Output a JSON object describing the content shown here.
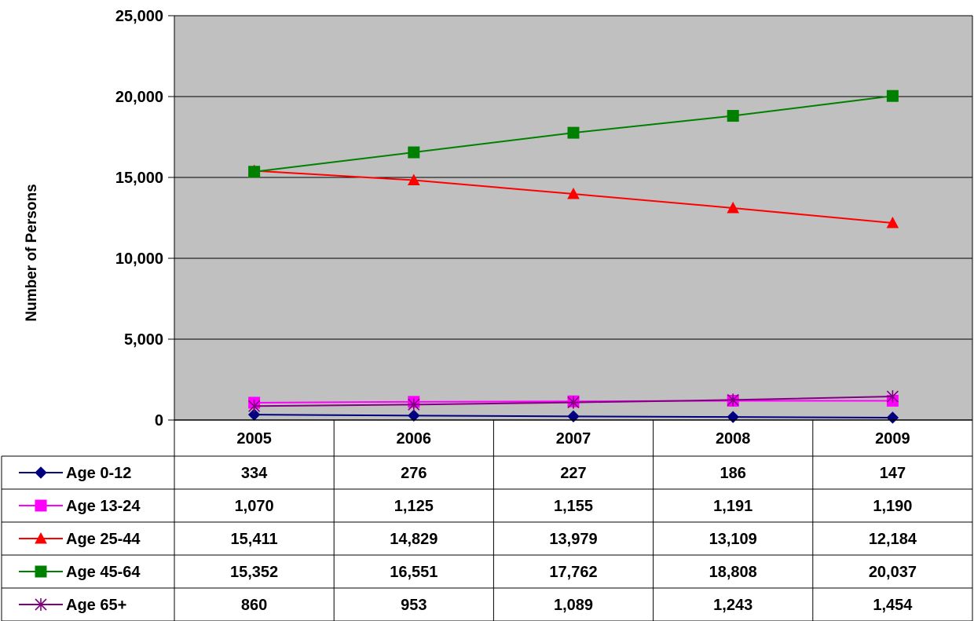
{
  "chart_data": {
    "type": "line",
    "title": "",
    "xlabel": "",
    "ylabel": "Number of Persons",
    "categories": [
      "2005",
      "2006",
      "2007",
      "2008",
      "2009"
    ],
    "ylim": [
      0,
      25000
    ],
    "yticks": [
      0,
      5000,
      10000,
      15000,
      20000,
      25000
    ],
    "ytick_labels": [
      "0",
      "5,000",
      "10,000",
      "15,000",
      "20,000",
      "25,000"
    ],
    "grid": true,
    "plot_background": "#C0C0C0",
    "legend": "data-table",
    "series": [
      {
        "name": "Age  0-12",
        "color": "#000080",
        "marker": "diamond",
        "values": [
          334,
          276,
          227,
          186,
          147
        ],
        "labels": [
          "334",
          "276",
          "227",
          "186",
          "147"
        ]
      },
      {
        "name": "Age 13-24",
        "color": "#FF00FF",
        "marker": "square",
        "values": [
          1070,
          1125,
          1155,
          1191,
          1190
        ],
        "labels": [
          "1,070",
          "1,125",
          "1,155",
          "1,191",
          "1,190"
        ]
      },
      {
        "name": "Age 25-44",
        "color": "#FF0000",
        "marker": "triangle",
        "values": [
          15411,
          14829,
          13979,
          13109,
          12184
        ],
        "labels": [
          "15,411",
          "14,829",
          "13,979",
          "13,109",
          "12,184"
        ]
      },
      {
        "name": "Age 45-64",
        "color": "#008000",
        "marker": "square",
        "values": [
          15352,
          16551,
          17762,
          18808,
          20037
        ],
        "labels": [
          "15,352",
          "16,551",
          "17,762",
          "18,808",
          "20,037"
        ]
      },
      {
        "name": "Age 65+",
        "color": "#800080",
        "marker": "star",
        "values": [
          860,
          953,
          1089,
          1243,
          1454
        ],
        "labels": [
          "860",
          "953",
          "1,089",
          "1,243",
          "1,454"
        ]
      }
    ]
  }
}
